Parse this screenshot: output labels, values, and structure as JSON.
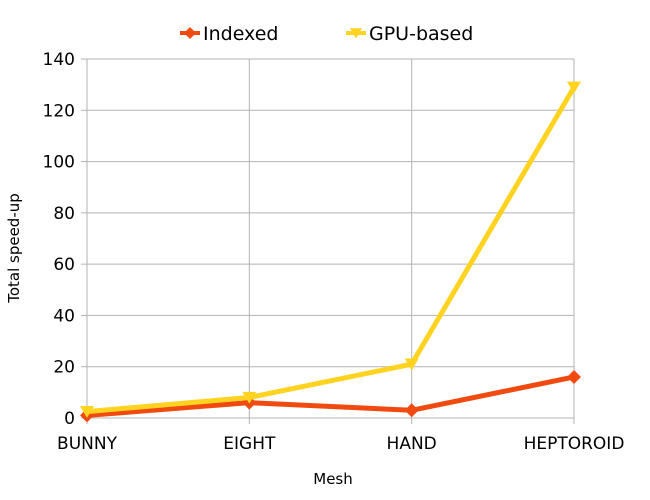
{
  "chart_data": {
    "type": "line",
    "categories": [
      "BUNNY",
      "EIGHT",
      "HAND",
      "HEPTOROID"
    ],
    "series": [
      {
        "name": "Indexed",
        "values": [
          1,
          6,
          3,
          16
        ],
        "color": "#f04a10",
        "marker": "diamond"
      },
      {
        "name": "GPU-based",
        "values": [
          2.5,
          8,
          21,
          129
        ],
        "color": "#ffd320",
        "marker": "triangle-down"
      }
    ],
    "xlabel": "Mesh",
    "ylabel": "Total speed-up",
    "ylim": [
      0,
      140
    ],
    "yticks": [
      0,
      20,
      40,
      60,
      80,
      100,
      120,
      140
    ],
    "grid": true,
    "legend": "top-center"
  }
}
